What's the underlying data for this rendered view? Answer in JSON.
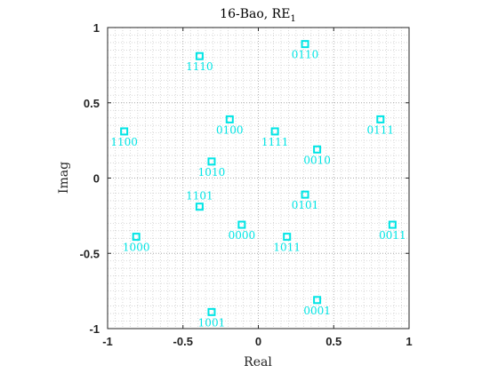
{
  "chart_data": {
    "type": "scatter",
    "title_main": "16-Bao, RE",
    "title_sub": "1",
    "xlabel": "Real",
    "ylabel": "Imag",
    "xlim": [
      -1,
      1
    ],
    "ylim": [
      -1,
      1
    ],
    "xticks": [
      "-1",
      "-0.5",
      "0",
      "0.5",
      "1"
    ],
    "yticks": [
      "1",
      "0.5",
      "0",
      "-0.5",
      "-1"
    ],
    "grid": true,
    "minor_grid": true,
    "marker": "square",
    "color": "#00e5e5",
    "points": [
      {
        "x": -0.39,
        "y": 0.81,
        "label": "1110",
        "pos": "below"
      },
      {
        "x": 0.31,
        "y": 0.89,
        "label": "0110",
        "pos": "below"
      },
      {
        "x": -0.89,
        "y": 0.31,
        "label": "1100",
        "pos": "below"
      },
      {
        "x": -0.19,
        "y": 0.39,
        "label": "0100",
        "pos": "below"
      },
      {
        "x": 0.11,
        "y": 0.31,
        "label": "1111",
        "pos": "below"
      },
      {
        "x": 0.81,
        "y": 0.39,
        "label": "0111",
        "pos": "below"
      },
      {
        "x": 0.39,
        "y": 0.19,
        "label": "0010",
        "pos": "below"
      },
      {
        "x": -0.31,
        "y": 0.11,
        "label": "1010",
        "pos": "below"
      },
      {
        "x": -0.39,
        "y": -0.19,
        "label": "1101",
        "pos": "above"
      },
      {
        "x": 0.31,
        "y": -0.11,
        "label": "0101",
        "pos": "below"
      },
      {
        "x": -0.81,
        "y": -0.39,
        "label": "1000",
        "pos": "below"
      },
      {
        "x": -0.11,
        "y": -0.31,
        "label": "0000",
        "pos": "below"
      },
      {
        "x": 0.19,
        "y": -0.39,
        "label": "1011",
        "pos": "below"
      },
      {
        "x": 0.89,
        "y": -0.31,
        "label": "0011",
        "pos": "below"
      },
      {
        "x": 0.39,
        "y": -0.81,
        "label": "0001",
        "pos": "below"
      },
      {
        "x": -0.31,
        "y": -0.89,
        "label": "1001",
        "pos": "below"
      }
    ]
  }
}
